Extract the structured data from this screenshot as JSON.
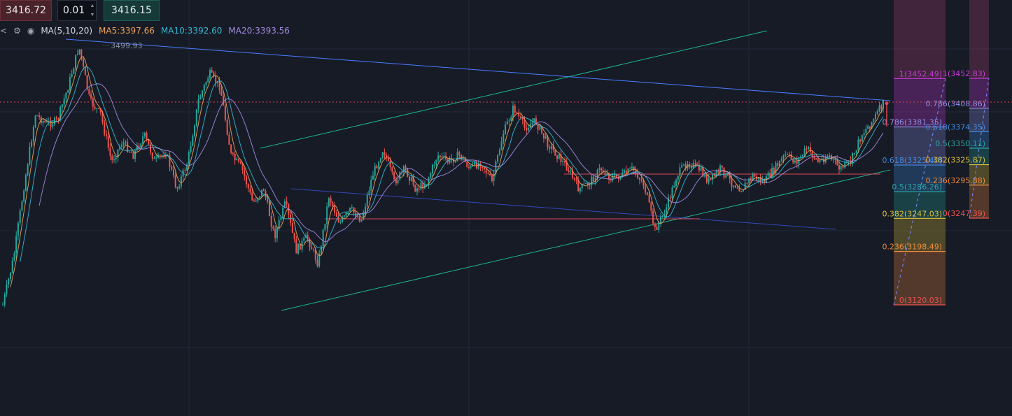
{
  "order_bar": {
    "sell_price": "3416.72",
    "quantity": "0.01",
    "buy_price": "3416.15"
  },
  "ma_legend": {
    "title": "MA(5,10,20)",
    "ma5": "MA5:3397.66",
    "ma10": "MA10:3392.60",
    "ma20": "MA20:3393.56"
  },
  "colors": {
    "background": "#161b26",
    "candle_up": "#26a69a",
    "candle_down": "#ef5350",
    "ma5": "#f0a35a",
    "ma10": "#35b8d4",
    "ma20": "#a58be0",
    "trendline_blue": "#4a7dff",
    "trendline_green": "#1fb58f",
    "level_red": "#e04452"
  },
  "chart_data": {
    "type": "candlestick",
    "high_marker": "3499.93",
    "price_path": [
      3120,
      3190,
      3300,
      3400,
      3386,
      3390,
      3440,
      3499.93,
      3420,
      3400,
      3330,
      3360,
      3340,
      3370,
      3330,
      3345,
      3290,
      3330,
      3420,
      3460,
      3440,
      3340,
      3320,
      3270,
      3290,
      3220,
      3270,
      3200,
      3220,
      3180,
      3280,
      3240,
      3260,
      3245,
      3310,
      3350,
      3300,
      3320,
      3290,
      3300,
      3340,
      3330,
      3340,
      3320,
      3330,
      3300,
      3370,
      3410,
      3380,
      3390,
      3360,
      3340,
      3320,
      3290,
      3300,
      3320,
      3306,
      3310,
      3320,
      3296,
      3230,
      3260,
      3310,
      3330,
      3320,
      3300,
      3320,
      3300,
      3290,
      3310,
      3300,
      3320,
      3340,
      3330,
      3350,
      3330,
      3340,
      3320,
      3330,
      3370,
      3390,
      3416
    ],
    "ma_lines": [
      "MA5",
      "MA10",
      "MA20"
    ],
    "fib_left": {
      "levels": [
        {
          "label": "1(3452.49)",
          "value": 3452.49,
          "color": "#c93ad6"
        },
        {
          "label": "0.786(3381.35)",
          "value": 3381.35,
          "color": "#8f8fe6"
        },
        {
          "label": "0.618(3325.40)",
          "value": 3325.4,
          "color": "#3f8be0"
        },
        {
          "label": "0.5(3286.26)",
          "value": 3286.26,
          "color": "#26a69a"
        },
        {
          "label": "0.382(3247.03)",
          "value": 3247.03,
          "color": "#e3c13a"
        },
        {
          "label": "0.236(3198.49)",
          "value": 3198.49,
          "color": "#f08a3c"
        },
        {
          "label": "0(3120.03)",
          "value": 3120.03,
          "color": "#ef5350"
        }
      ]
    },
    "fib_right": {
      "levels": [
        {
          "label": "1(3452.83)",
          "value": 3452.83,
          "color": "#c93ad6"
        },
        {
          "label": "0.786(3408.86)",
          "value": 3408.86,
          "color": "#8f8fe6"
        },
        {
          "label": "0.618(3374.35)",
          "value": 3374.35,
          "color": "#3f8be0"
        },
        {
          "label": "0.5(3350.11)",
          "value": 3350.11,
          "color": "#26a69a"
        },
        {
          "label": "0.382(3325.87)",
          "value": 3325.87,
          "color": "#e3c13a"
        },
        {
          "label": "0.236(3295.88)",
          "value": 3295.88,
          "color": "#f08a3c"
        },
        {
          "label": "0(3247.39)",
          "value": 3247.39,
          "color": "#ef5350"
        }
      ]
    },
    "current_price": 3416.15
  }
}
